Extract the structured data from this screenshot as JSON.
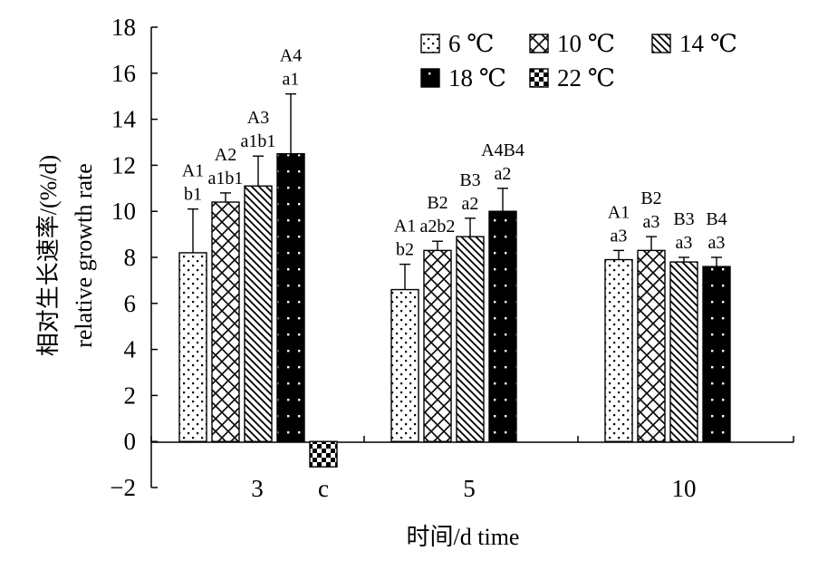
{
  "chart_data": {
    "type": "bar",
    "xlabel": "时间/d time",
    "ylabel_cn": "相对生长速率/(%/d)",
    "ylabel_en": "relative growth rate",
    "ylim": [
      -2,
      18
    ],
    "yticks": [
      "18",
      "16",
      "14",
      "12",
      "10",
      "8",
      "6",
      "4",
      "2",
      "0",
      "−2"
    ],
    "categories": [
      "3",
      "5",
      "10"
    ],
    "series": [
      {
        "name": "6 ℃",
        "pattern": "dots",
        "values": [
          8.2,
          6.6,
          7.9
        ],
        "errors": [
          1.9,
          1.1,
          0.4
        ]
      },
      {
        "name": "10 ℃",
        "pattern": "diamonds",
        "values": [
          10.4,
          8.3,
          8.3
        ],
        "errors": [
          0.4,
          0.4,
          0.6
        ]
      },
      {
        "name": "14 ℃",
        "pattern": "diagonal",
        "values": [
          11.1,
          8.9,
          7.8
        ],
        "errors": [
          1.3,
          0.8,
          0.2
        ]
      },
      {
        "name": "18 ℃",
        "pattern": "black-dots",
        "values": [
          12.5,
          10.0,
          7.6
        ],
        "errors": [
          2.6,
          1.0,
          0.4
        ]
      },
      {
        "name": "22 ℃",
        "pattern": "checker",
        "values": [
          -1.1,
          null,
          null
        ],
        "errors": [
          null,
          null,
          null
        ]
      }
    ],
    "significance": [
      [
        "A1 b1",
        "A1 b2",
        "A1 a3"
      ],
      [
        "A2 a1b1",
        "B2 a2b2",
        "B2 a3"
      ],
      [
        "A3 a1b1",
        "B3 a2",
        "B3 a3"
      ],
      [
        "A4 a1",
        "A4B4 a2",
        "B4 a3"
      ],
      [
        "c",
        "",
        ""
      ]
    ],
    "legend_position": "top-right",
    "grid": false
  }
}
